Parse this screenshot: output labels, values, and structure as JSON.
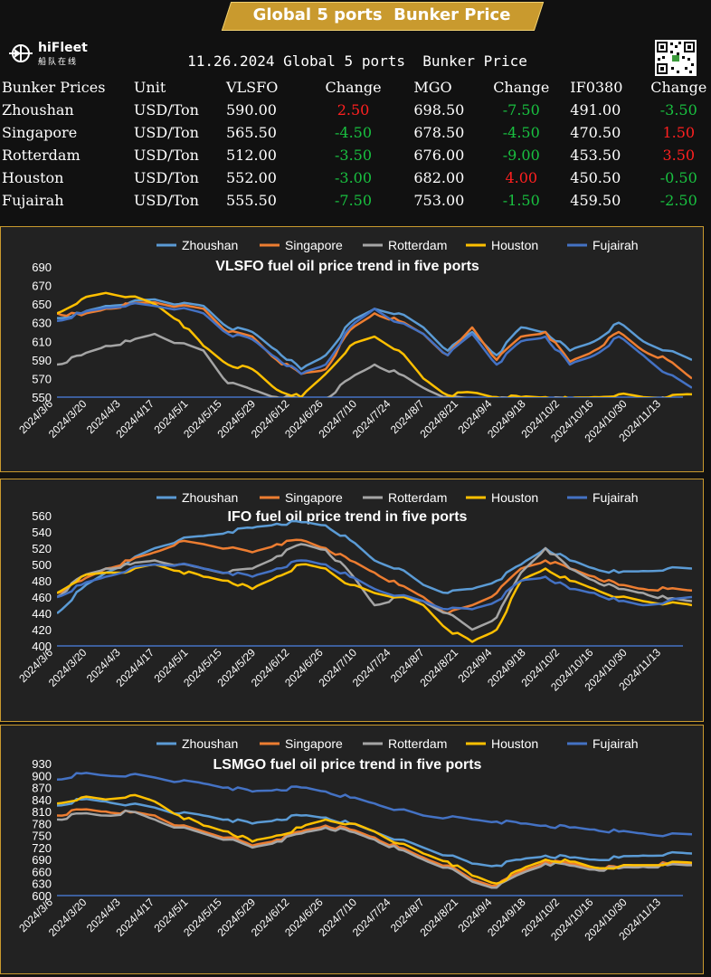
{
  "banner": {
    "title": "Global 5 ports  Bunker Price"
  },
  "logo": {
    "name": "hiFleet",
    "sub": "船队在线"
  },
  "table": {
    "title": "11.26.2024 Global 5 ports  Bunker Price",
    "headers": [
      "Bunker Prices",
      "Unit",
      "VLSFO",
      "Change",
      "MGO",
      "Change",
      "IF0380",
      "Change"
    ],
    "rows": [
      {
        "port": "Zhoushan",
        "unit": "USD/Ton",
        "vlsfo": "590.00",
        "vlsfo_change": "2.50",
        "mgo": "698.50",
        "mgo_change": "-7.50",
        "ifo": "491.00",
        "ifo_change": "-3.50"
      },
      {
        "port": "Singapore",
        "unit": "USD/Ton",
        "vlsfo": "565.50",
        "vlsfo_change": "-4.50",
        "mgo": "678.50",
        "mgo_change": "-4.50",
        "ifo": "470.50",
        "ifo_change": "1.50"
      },
      {
        "port": "Rotterdam",
        "unit": "USD/Ton",
        "vlsfo": "512.00",
        "vlsfo_change": "-3.50",
        "mgo": "676.00",
        "mgo_change": "-9.00",
        "ifo": "453.50",
        "ifo_change": "3.50"
      },
      {
        "port": "Houston",
        "unit": "USD/Ton",
        "vlsfo": "552.00",
        "vlsfo_change": "-3.00",
        "mgo": "682.00",
        "mgo_change": "4.00",
        "ifo": "450.50",
        "ifo_change": "-0.50"
      },
      {
        "port": "Fujairah",
        "unit": "USD/Ton",
        "vlsfo": "555.50",
        "vlsfo_change": "-7.50",
        "mgo": "753.00",
        "mgo_change": "-1.50",
        "ifo": "459.50",
        "ifo_change": "-2.50"
      }
    ]
  },
  "colors": {
    "up": "#ff2020",
    "down": "#19c040",
    "accent": "#c99a2e"
  },
  "chart_data": [
    {
      "type": "line",
      "title": "VLSFO fuel oil price trend in five ports",
      "legend_position": "top",
      "grid": false,
      "ylim": [
        550,
        690
      ],
      "yticks": [
        550,
        570,
        590,
        610,
        630,
        650,
        670,
        690
      ],
      "x_tick_labels": [
        "2024/3/6",
        "2024/3/20",
        "2024/4/3",
        "2024/4/17",
        "2024/5/1",
        "2024/5/15",
        "2024/5/29",
        "2024/6/12",
        "2024/6/26",
        "2024/7/10",
        "2024/7/24",
        "2024/8/7",
        "2024/8/21",
        "2024/9/4",
        "2024/9/18",
        "2024/10/2",
        "2024/10/16",
        "2024/10/30",
        "2024/11/13"
      ],
      "series": [
        {
          "name": "Zhoushan",
          "color": "#5b9bd5",
          "values": [
            635,
            640,
            648,
            652,
            655,
            650,
            648,
            625,
            620,
            600,
            580,
            595,
            630,
            645,
            640,
            625,
            600,
            620,
            595,
            625,
            620,
            600,
            610,
            630,
            610,
            600,
            590
          ]
        },
        {
          "name": "Singapore",
          "color": "#ed7d31",
          "values": [
            640,
            638,
            645,
            650,
            652,
            648,
            645,
            620,
            615,
            590,
            575,
            580,
            622,
            640,
            632,
            618,
            595,
            625,
            590,
            615,
            620,
            588,
            600,
            620,
            600,
            590,
            570
          ]
        },
        {
          "name": "Rotterdam",
          "color": "#a5a5a5",
          "values": [
            585,
            595,
            605,
            610,
            618,
            608,
            600,
            565,
            558,
            550,
            548,
            548,
            570,
            585,
            575,
            560,
            550,
            548,
            548,
            548,
            548,
            548,
            548,
            548,
            548,
            548,
            548
          ]
        },
        {
          "name": "Houston",
          "color": "#ffc000",
          "values": [
            640,
            655,
            662,
            658,
            650,
            632,
            605,
            585,
            580,
            558,
            550,
            575,
            605,
            615,
            600,
            570,
            552,
            555,
            550,
            550,
            550,
            548,
            550,
            553,
            550,
            550,
            553
          ]
        },
        {
          "name": "Fujairah",
          "color": "#4472c4",
          "values": [
            632,
            640,
            646,
            650,
            648,
            645,
            640,
            618,
            612,
            592,
            575,
            585,
            625,
            645,
            630,
            618,
            595,
            618,
            585,
            610,
            615,
            585,
            595,
            615,
            595,
            575,
            560
          ]
        }
      ]
    },
    {
      "type": "line",
      "title": "IFO fuel oil price trend in five ports",
      "legend_position": "top",
      "grid": false,
      "ylim": [
        400,
        560
      ],
      "yticks": [
        400,
        420,
        440,
        460,
        480,
        500,
        520,
        540,
        560
      ],
      "x_tick_labels": [
        "2024/3/6",
        "2024/3/20",
        "2024/4/3",
        "2024/4/17",
        "2024/5/1",
        "2024/5/15",
        "2024/5/29",
        "2024/6/12",
        "2024/6/26",
        "2024/7/10",
        "2024/7/24",
        "2024/8/7",
        "2024/8/21",
        "2024/9/4",
        "2024/9/18",
        "2024/10/2",
        "2024/10/16",
        "2024/10/30",
        "2024/11/13"
      ],
      "series": [
        {
          "name": "Zhoushan",
          "color": "#5b9bd5",
          "values": [
            440,
            470,
            490,
            505,
            520,
            530,
            535,
            540,
            545,
            550,
            552,
            548,
            530,
            505,
            495,
            475,
            465,
            470,
            480,
            500,
            520,
            505,
            495,
            490,
            492,
            495,
            495
          ]
        },
        {
          "name": "Singapore",
          "color": "#ed7d31",
          "values": [
            465,
            480,
            495,
            505,
            515,
            528,
            525,
            520,
            515,
            525,
            530,
            520,
            505,
            490,
            475,
            460,
            440,
            450,
            465,
            495,
            505,
            495,
            485,
            475,
            470,
            470,
            468
          ]
        },
        {
          "name": "Rotterdam",
          "color": "#a5a5a5",
          "values": [
            460,
            485,
            495,
            500,
            505,
            500,
            495,
            490,
            495,
            510,
            525,
            518,
            490,
            450,
            460,
            455,
            440,
            420,
            435,
            490,
            520,
            495,
            480,
            470,
            465,
            458,
            455
          ]
        },
        {
          "name": "Houston",
          "color": "#ffc000",
          "values": [
            465,
            485,
            490,
            492,
            500,
            492,
            485,
            480,
            470,
            485,
            500,
            495,
            475,
            465,
            460,
            450,
            420,
            405,
            420,
            480,
            495,
            480,
            470,
            460,
            455,
            452,
            450
          ]
        },
        {
          "name": "Fujairah",
          "color": "#4472c4",
          "values": [
            460,
            475,
            485,
            495,
            500,
            500,
            495,
            490,
            485,
            495,
            505,
            500,
            485,
            470,
            462,
            455,
            445,
            445,
            455,
            480,
            485,
            470,
            465,
            455,
            450,
            455,
            460
          ]
        }
      ]
    },
    {
      "type": "line",
      "title": "LSMGO fuel oil price trend in five ports",
      "legend_position": "top",
      "grid": false,
      "ylim": [
        600,
        930
      ],
      "yticks": [
        600,
        630,
        660,
        690,
        720,
        750,
        780,
        810,
        840,
        870,
        900,
        930
      ],
      "x_tick_labels": [
        "2024/3/6",
        "2024/3/20",
        "2024/4/3",
        "2024/4/17",
        "2024/5/1",
        "2024/5/15",
        "2024/5/29",
        "2024/6/12",
        "2024/6/26",
        "2024/7/10",
        "2024/7/24",
        "2024/8/7",
        "2024/8/21",
        "2024/9/4",
        "2024/9/18",
        "2024/10/2",
        "2024/10/16",
        "2024/10/30",
        "2024/11/13"
      ],
      "series": [
        {
          "name": "Zhoushan",
          "color": "#5b9bd5",
          "values": [
            825,
            840,
            835,
            828,
            820,
            805,
            800,
            790,
            780,
            790,
            800,
            795,
            780,
            760,
            740,
            720,
            700,
            680,
            675,
            690,
            700,
            695,
            690,
            695,
            700,
            705,
            705
          ]
        },
        {
          "name": "Singapore",
          "color": "#ed7d31",
          "values": [
            800,
            815,
            810,
            808,
            800,
            775,
            760,
            745,
            725,
            740,
            760,
            775,
            765,
            745,
            720,
            695,
            675,
            640,
            625,
            660,
            685,
            680,
            670,
            670,
            675,
            680,
            678
          ]
        },
        {
          "name": "Rotterdam",
          "color": "#a5a5a5",
          "values": [
            790,
            805,
            800,
            810,
            790,
            770,
            755,
            740,
            720,
            735,
            755,
            770,
            760,
            740,
            715,
            690,
            670,
            635,
            620,
            655,
            680,
            675,
            665,
            668,
            672,
            676,
            676
          ]
        },
        {
          "name": "Houston",
          "color": "#ffc000",
          "values": [
            830,
            845,
            840,
            850,
            835,
            800,
            775,
            760,
            735,
            750,
            770,
            790,
            780,
            760,
            730,
            705,
            685,
            650,
            630,
            665,
            690,
            685,
            670,
            672,
            676,
            680,
            682
          ]
        },
        {
          "name": "Fujairah",
          "color": "#4472c4",
          "values": [
            890,
            905,
            900,
            902,
            895,
            885,
            880,
            870,
            860,
            865,
            870,
            860,
            845,
            830,
            815,
            800,
            795,
            790,
            785,
            780,
            775,
            770,
            765,
            760,
            755,
            752,
            753
          ]
        }
      ]
    }
  ]
}
